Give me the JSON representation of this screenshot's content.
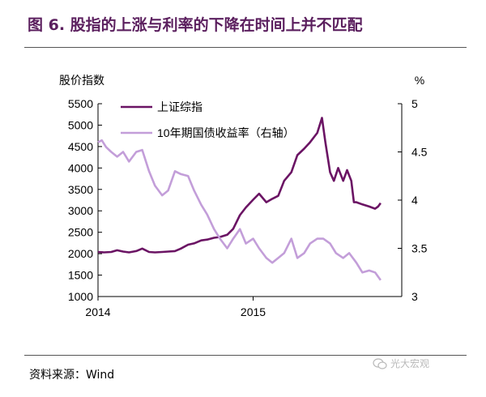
{
  "figure": {
    "title": "图 6. 股指的上涨与利率的下降在时间上并不匹配",
    "source": "资料来源：Wind",
    "watermark": "光大宏观"
  },
  "chart_data": {
    "type": "line",
    "left_axis": {
      "label": "股价指数",
      "min": 1000,
      "max": 5500,
      "ticks": [
        "1000",
        "1500",
        "2000",
        "2500",
        "3000",
        "3500",
        "4000",
        "4500",
        "5000",
        "5500"
      ]
    },
    "right_axis": {
      "label": "%",
      "min": 3,
      "max": 5,
      "ticks": [
        "3",
        "3.5",
        "4",
        "4.5",
        "5"
      ]
    },
    "x_axis": {
      "ticks": [
        "2014",
        "2015"
      ]
    },
    "legend_position": "top-center",
    "grid": false,
    "colors": {
      "index": "#6b1464",
      "yield": "#c39ed9",
      "axis": "#000000"
    },
    "series": [
      {
        "name": "上证综指",
        "axis": "left",
        "points": [
          [
            "2014-01-01",
            2040
          ],
          [
            "2014-01-15",
            2030
          ],
          [
            "2014-02-01",
            2040
          ],
          [
            "2014-02-15",
            2080
          ],
          [
            "2014-03-01",
            2050
          ],
          [
            "2014-03-15",
            2030
          ],
          [
            "2014-04-01",
            2060
          ],
          [
            "2014-04-15",
            2120
          ],
          [
            "2014-05-01",
            2040
          ],
          [
            "2014-05-15",
            2030
          ],
          [
            "2014-06-01",
            2040
          ],
          [
            "2014-06-15",
            2050
          ],
          [
            "2014-07-01",
            2060
          ],
          [
            "2014-07-15",
            2120
          ],
          [
            "2014-08-01",
            2210
          ],
          [
            "2014-08-15",
            2240
          ],
          [
            "2014-09-01",
            2310
          ],
          [
            "2014-09-15",
            2330
          ],
          [
            "2014-10-01",
            2370
          ],
          [
            "2014-10-15",
            2390
          ],
          [
            "2014-11-01",
            2440
          ],
          [
            "2014-11-15",
            2580
          ],
          [
            "2014-12-01",
            2900
          ],
          [
            "2014-12-15",
            3080
          ],
          [
            "2015-01-01",
            3260
          ],
          [
            "2015-01-15",
            3400
          ],
          [
            "2015-02-01",
            3200
          ],
          [
            "2015-02-15",
            3280
          ],
          [
            "2015-03-01",
            3350
          ],
          [
            "2015-03-15",
            3700
          ],
          [
            "2015-04-01",
            3900
          ],
          [
            "2015-04-15",
            4300
          ],
          [
            "2015-05-01",
            4450
          ],
          [
            "2015-05-15",
            4600
          ],
          [
            "2015-06-01",
            4820
          ],
          [
            "2015-06-12",
            5170
          ],
          [
            "2015-06-20",
            4600
          ],
          [
            "2015-07-01",
            3900
          ],
          [
            "2015-07-10",
            3700
          ],
          [
            "2015-07-20",
            4000
          ],
          [
            "2015-08-01",
            3700
          ],
          [
            "2015-08-10",
            3950
          ],
          [
            "2015-08-20",
            3700
          ],
          [
            "2015-08-26",
            3200
          ],
          [
            "2015-09-01",
            3200
          ],
          [
            "2015-09-15",
            3150
          ],
          [
            "2015-10-01",
            3100
          ],
          [
            "2015-10-15",
            3050
          ],
          [
            "2015-10-22",
            3100
          ],
          [
            "2015-10-28",
            3180
          ]
        ]
      },
      {
        "name": "10年期国债收益率（右轴）",
        "axis": "right",
        "points": [
          [
            "2014-01-01",
            4.6
          ],
          [
            "2014-01-10",
            4.62
          ],
          [
            "2014-01-20",
            4.55
          ],
          [
            "2014-02-01",
            4.5
          ],
          [
            "2014-02-15",
            4.45
          ],
          [
            "2014-03-01",
            4.5
          ],
          [
            "2014-03-15",
            4.4
          ],
          [
            "2014-04-01",
            4.5
          ],
          [
            "2014-04-15",
            4.52
          ],
          [
            "2014-05-01",
            4.3
          ],
          [
            "2014-05-15",
            4.15
          ],
          [
            "2014-06-01",
            4.05
          ],
          [
            "2014-06-15",
            4.1
          ],
          [
            "2014-07-01",
            4.3
          ],
          [
            "2014-07-15",
            4.27
          ],
          [
            "2014-08-01",
            4.25
          ],
          [
            "2014-08-15",
            4.1
          ],
          [
            "2014-09-01",
            3.95
          ],
          [
            "2014-09-15",
            3.85
          ],
          [
            "2014-10-01",
            3.7
          ],
          [
            "2014-10-15",
            3.6
          ],
          [
            "2014-11-01",
            3.5
          ],
          [
            "2014-11-15",
            3.6
          ],
          [
            "2014-12-01",
            3.7
          ],
          [
            "2014-12-15",
            3.55
          ],
          [
            "2015-01-01",
            3.6
          ],
          [
            "2015-01-15",
            3.5
          ],
          [
            "2015-02-01",
            3.4
          ],
          [
            "2015-02-15",
            3.35
          ],
          [
            "2015-03-01",
            3.4
          ],
          [
            "2015-03-15",
            3.45
          ],
          [
            "2015-04-01",
            3.6
          ],
          [
            "2015-04-15",
            3.4
          ],
          [
            "2015-05-01",
            3.45
          ],
          [
            "2015-05-15",
            3.55
          ],
          [
            "2015-06-01",
            3.6
          ],
          [
            "2015-06-15",
            3.6
          ],
          [
            "2015-07-01",
            3.55
          ],
          [
            "2015-07-15",
            3.45
          ],
          [
            "2015-08-01",
            3.4
          ],
          [
            "2015-08-15",
            3.45
          ],
          [
            "2015-09-01",
            3.35
          ],
          [
            "2015-09-15",
            3.25
          ],
          [
            "2015-10-01",
            3.27
          ],
          [
            "2015-10-15",
            3.25
          ],
          [
            "2015-10-28",
            3.17
          ]
        ]
      }
    ]
  }
}
